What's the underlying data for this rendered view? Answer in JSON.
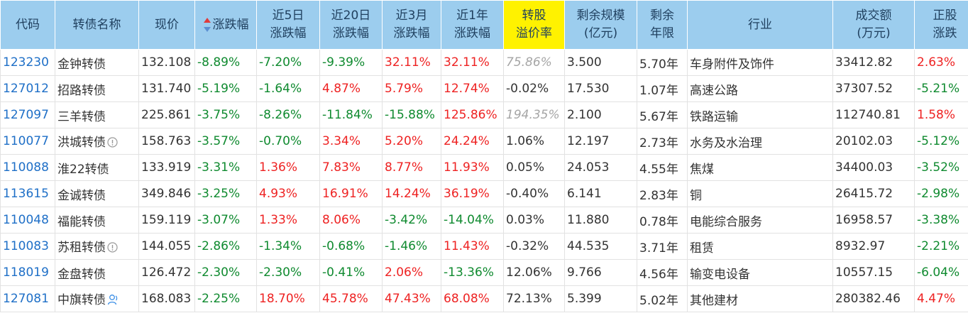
{
  "columns": [
    {
      "line1": "代码",
      "line2": ""
    },
    {
      "line1": "转债名称",
      "line2": ""
    },
    {
      "line1": "现价",
      "line2": ""
    },
    {
      "line1": "涨跌幅",
      "line2": ""
    },
    {
      "line1": "近5日",
      "line2": "涨跌幅"
    },
    {
      "line1": "近20日",
      "line2": "涨跌幅"
    },
    {
      "line1": "近3月",
      "line2": "涨跌幅"
    },
    {
      "line1": "近1年",
      "line2": "涨跌幅"
    },
    {
      "line1": "转股",
      "line2": "溢价率"
    },
    {
      "line1": "剩余规模",
      "line2": "(亿元)"
    },
    {
      "line1": "剩余",
      "line2": "年限"
    },
    {
      "line1": "行业",
      "line2": ""
    },
    {
      "line1": "成交额",
      "line2": "(万元)"
    },
    {
      "line1": "正股",
      "line2": "涨跌"
    }
  ],
  "sort_state": {
    "column": "涨跌幅",
    "direction": "ascending-indicator",
    "up_color": "#e03b3b",
    "down_color": "#5b8fd1"
  },
  "header_highlight_color": "#fff200",
  "rows": [
    {
      "code": "123230",
      "name": "金钟转债",
      "name_icon": "",
      "price": "132.108",
      "chg": "-8.89%",
      "chg5": "-7.20%",
      "chg20": "-9.39%",
      "chg3m": "32.11%",
      "chg1y": "32.11%",
      "premium": "75.86%",
      "premium_style": "grey",
      "scale": "3.500",
      "years": "5.70年",
      "industry": "车身附件及饰件",
      "turnover": "33412.82",
      "stock_chg": "2.63%"
    },
    {
      "code": "127012",
      "name": "招路转债",
      "name_icon": "",
      "price": "131.740",
      "chg": "-5.19%",
      "chg5": "-1.64%",
      "chg20": "4.87%",
      "chg3m": "5.79%",
      "chg1y": "12.74%",
      "premium": "-0.02%",
      "premium_style": "normal",
      "scale": "17.530",
      "years": "1.07年",
      "industry": "高速公路",
      "turnover": "37307.52",
      "stock_chg": "-5.21%"
    },
    {
      "code": "127097",
      "name": "三羊转债",
      "name_icon": "",
      "price": "225.861",
      "chg": "-3.75%",
      "chg5": "-8.26%",
      "chg20": "-11.84%",
      "chg3m": "-15.88%",
      "chg1y": "125.86%",
      "premium": "194.35%",
      "premium_style": "grey",
      "scale": "2.100",
      "years": "5.67年",
      "industry": "铁路运输",
      "turnover": "112740.81",
      "stock_chg": "1.58%"
    },
    {
      "code": "110077",
      "name": "洪城转债",
      "name_icon": "info-circle-icon",
      "price": "158.763",
      "chg": "-3.57%",
      "chg5": "-0.70%",
      "chg20": "3.34%",
      "chg3m": "5.20%",
      "chg1y": "24.24%",
      "premium": "1.06%",
      "premium_style": "normal",
      "scale": "12.197",
      "years": "2.73年",
      "industry": "水务及水治理",
      "turnover": "20102.03",
      "stock_chg": "-5.12%"
    },
    {
      "code": "110088",
      "name": "淮22转债",
      "name_icon": "",
      "price": "133.919",
      "chg": "-3.31%",
      "chg5": "1.36%",
      "chg20": "7.83%",
      "chg3m": "8.77%",
      "chg1y": "11.93%",
      "premium": "0.05%",
      "premium_style": "normal",
      "scale": "24.053",
      "years": "4.55年",
      "industry": "焦煤",
      "turnover": "34400.03",
      "stock_chg": "-3.52%"
    },
    {
      "code": "113615",
      "name": "金诚转债",
      "name_icon": "",
      "price": "349.846",
      "chg": "-3.25%",
      "chg5": "4.93%",
      "chg20": "16.91%",
      "chg3m": "14.24%",
      "chg1y": "36.19%",
      "premium": "-0.40%",
      "premium_style": "normal",
      "scale": "6.141",
      "years": "2.83年",
      "industry": "铜",
      "turnover": "26415.72",
      "stock_chg": "-2.98%"
    },
    {
      "code": "110048",
      "name": "福能转债",
      "name_icon": "",
      "price": "159.119",
      "chg": "-3.07%",
      "chg5": "1.33%",
      "chg20": "8.06%",
      "chg3m": "-3.42%",
      "chg1y": "-14.04%",
      "premium": "0.03%",
      "premium_style": "normal",
      "scale": "11.880",
      "years": "0.78年",
      "industry": "电能综合服务",
      "turnover": "16958.57",
      "stock_chg": "-3.38%"
    },
    {
      "code": "110083",
      "name": "苏租转债",
      "name_icon": "info-circle-icon",
      "price": "144.055",
      "chg": "-2.86%",
      "chg5": "-1.34%",
      "chg20": "-0.68%",
      "chg3m": "-1.46%",
      "chg1y": "11.43%",
      "premium": "-0.32%",
      "premium_style": "normal",
      "scale": "44.535",
      "years": "3.71年",
      "industry": "租赁",
      "turnover": "8932.97",
      "stock_chg": "-2.21%"
    },
    {
      "code": "118019",
      "name": "金盘转债",
      "name_icon": "",
      "price": "126.472",
      "chg": "-2.30%",
      "chg5": "-2.30%",
      "chg20": "-0.41%",
      "chg3m": "2.06%",
      "chg1y": "-13.36%",
      "premium": "12.06%",
      "premium_style": "normal",
      "scale": "9.766",
      "years": "4.56年",
      "industry": "输变电设备",
      "turnover": "10557.15",
      "stock_chg": "-6.04%"
    },
    {
      "code": "127081",
      "name": "中旗转债",
      "name_icon": "person-icon",
      "price": "168.083",
      "chg": "-2.25%",
      "chg5": "18.70%",
      "chg20": "45.78%",
      "chg3m": "47.43%",
      "chg1y": "68.08%",
      "premium": "72.13%",
      "premium_style": "normal",
      "scale": "5.399",
      "years": "5.02年",
      "industry": "其他建材",
      "turnover": "280382.46",
      "stock_chg": "4.47%"
    }
  ]
}
